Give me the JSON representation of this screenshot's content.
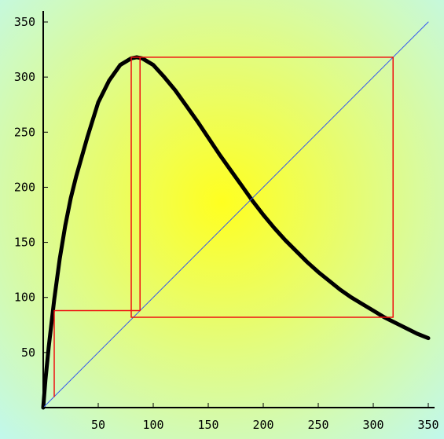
{
  "chart_data": {
    "type": "line",
    "title": "",
    "xlabel": "",
    "ylabel": "",
    "xlim": [
      0,
      350
    ],
    "ylim": [
      0,
      350
    ],
    "grid": false,
    "legend": "none",
    "x_ticks": [
      50,
      100,
      150,
      200,
      250,
      300,
      350
    ],
    "y_ticks": [
      50,
      100,
      150,
      200,
      250,
      300,
      350
    ],
    "x_tick_labels": [
      "50",
      "100",
      "150",
      "200",
      "250",
      "300",
      "350"
    ],
    "y_tick_labels": [
      "50",
      "100",
      "150",
      "200",
      "250",
      "300",
      "350"
    ],
    "series": [
      {
        "type": "line",
        "color": "#000000",
        "x": [
          0,
          2,
          5,
          10,
          15,
          20,
          25,
          30,
          40,
          50,
          60,
          70,
          80,
          85,
          90,
          100,
          110,
          120,
          130,
          140,
          150,
          160,
          170,
          180,
          190,
          200,
          210,
          220,
          230,
          240,
          250,
          260,
          270,
          280,
          290,
          300,
          310,
          320,
          330,
          340,
          350
        ],
        "y": [
          0,
          25,
          55,
          98,
          135,
          165,
          190,
          210,
          245,
          277,
          297,
          311,
          317,
          318,
          317,
          311,
          300,
          288,
          274,
          260,
          245,
          230,
          216,
          202,
          188,
          175,
          163,
          152,
          142,
          132,
          123,
          115,
          107,
          100,
          94,
          88,
          82,
          77,
          72,
          67,
          63
        ]
      },
      {
        "type": "line",
        "color": "#3355ee",
        "x": [
          0,
          350
        ],
        "y": [
          0,
          350
        ]
      },
      {
        "type": "line",
        "color": "#ee1111",
        "x": [
          10,
          10,
          88,
          88,
          318,
          318,
          80,
          80,
          318
        ],
        "y": [
          10,
          88,
          88,
          318,
          318,
          82,
          82,
          318,
          318
        ]
      }
    ],
    "colors": {
      "background_center": "#ffff20",
      "background_edge": "#c0f8f0",
      "curve": "#000000",
      "diagonal": "#3355ee",
      "cobweb": "#ee1111"
    }
  }
}
